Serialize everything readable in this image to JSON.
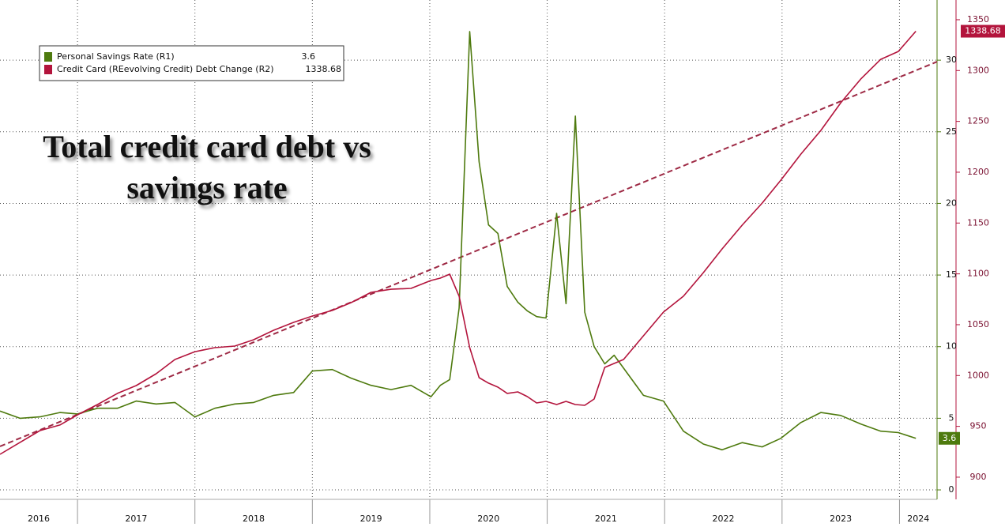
{
  "chart_data": {
    "type": "line",
    "title_lines": [
      "Total credit card debt vs",
      "savings rate"
    ],
    "x": [
      2016.34,
      2016.51,
      2016.68,
      2016.85,
      2017.0,
      2017.17,
      2017.34,
      2017.5,
      2017.67,
      2017.83,
      2018.0,
      2018.17,
      2018.34,
      2018.5,
      2018.67,
      2018.84,
      2019.0,
      2019.17,
      2019.33,
      2019.5,
      2019.67,
      2019.84,
      2020.01,
      2020.09,
      2020.17,
      2020.25,
      2020.34,
      2020.42,
      2020.5,
      2020.58,
      2020.66,
      2020.75,
      2020.83,
      2020.91,
      2020.99,
      2021.08,
      2021.16,
      2021.24,
      2021.32,
      2021.4,
      2021.49,
      2021.57,
      2021.65,
      2021.82,
      2021.99,
      2022.16,
      2022.33,
      2022.49,
      2022.66,
      2022.83,
      2022.99,
      2023.16,
      2023.33,
      2023.5,
      2023.67,
      2023.84,
      2023.99,
      2024.14
    ],
    "series": [
      {
        "name": "Personal Savings Rate (R1)",
        "color": "#4e7a0e",
        "axis": "y",
        "values": [
          5.5,
          5.0,
          5.1,
          5.4,
          5.3,
          5.7,
          5.7,
          6.2,
          6.0,
          6.1,
          5.1,
          5.7,
          6.0,
          6.1,
          6.6,
          6.8,
          8.3,
          8.4,
          7.8,
          7.3,
          7.0,
          7.3,
          6.5,
          7.3,
          7.7,
          12.7,
          32.0,
          22.9,
          18.5,
          17.9,
          14.2,
          13.1,
          12.5,
          12.1,
          12.0,
          19.3,
          13.0,
          26.1,
          12.4,
          10.0,
          8.8,
          9.4,
          8.5,
          6.6,
          6.2,
          4.1,
          3.2,
          2.8,
          3.3,
          3.0,
          3.6,
          4.7,
          5.4,
          5.2,
          4.6,
          4.1,
          4.0,
          3.6
        ]
      },
      {
        "name": "Credit Card (REevolving Credit) Debt Change (R2)",
        "color": "#b3143c",
        "axis": "y2",
        "values": [
          922.5,
          934.2,
          945.8,
          951.3,
          961.4,
          971.5,
          982.4,
          990.1,
          1001.8,
          1015.8,
          1023.5,
          1027.4,
          1029.0,
          1035.2,
          1044.5,
          1052.3,
          1058.5,
          1064.0,
          1071.7,
          1081.8,
          1084.9,
          1085.7,
          1093.5,
          1095.8,
          1099.7,
          1078.0,
          1027.4,
          997.9,
          992.5,
          988.6,
          982.4,
          983.9,
          979.3,
          973.0,
          974.6,
          971.5,
          974.6,
          971.5,
          970.7,
          976.9,
          1008.0,
          1011.9,
          1015.8,
          1039.1,
          1062.4,
          1078.0,
          1101.2,
          1124.6,
          1147.9,
          1169.6,
          1192.2,
          1217.8,
          1241.1,
          1268.3,
          1291.6,
          1311.0,
          1318.8,
          1338.68
        ]
      }
    ],
    "trend_line": {
      "axis": "y2",
      "color": "#9e2a45",
      "dashed": true,
      "x": [
        2016.34,
        2024.32
      ],
      "values": [
        930.3,
        1308.7
      ]
    },
    "xlim": [
      2016.34,
      2024.32
    ],
    "xticks": [
      2016,
      2017,
      2018,
      2019,
      2020,
      2021,
      2022,
      2023,
      2024
    ],
    "ylim": [
      -0.66,
      34.2
    ],
    "yticks": [
      0,
      5,
      10,
      15,
      20,
      25,
      30
    ],
    "y2lim": [
      878.2,
      1369.4
    ],
    "y2ticks": [
      900,
      950,
      1000,
      1050,
      1100,
      1150,
      1200,
      1250,
      1300,
      1350
    ],
    "grid": true,
    "legend": "top-left"
  }
}
